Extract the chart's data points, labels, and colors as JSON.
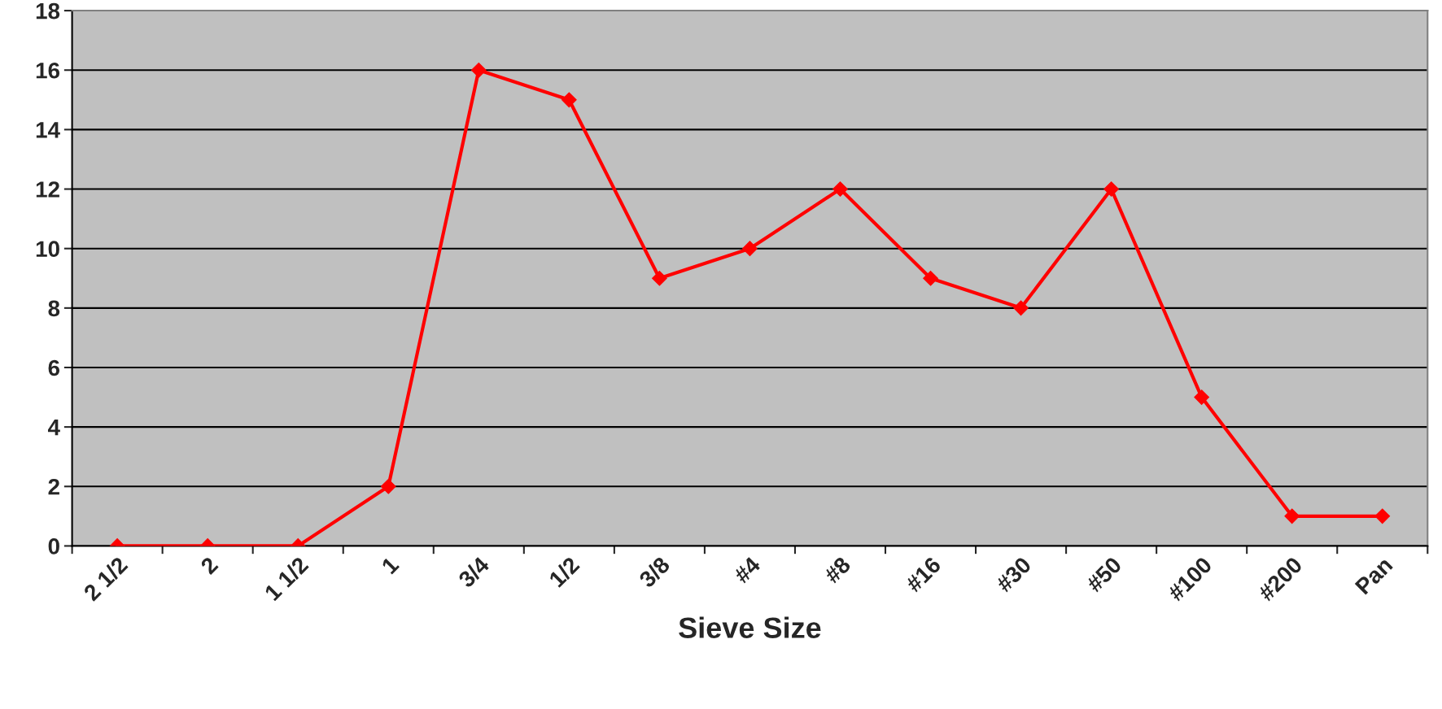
{
  "chart_data": {
    "type": "line",
    "xlabel": "Sieve Size",
    "categories": [
      "2 1/2",
      "2",
      "1 1/2",
      "1",
      "3/4",
      "1/2",
      "3/8",
      "#4",
      "#8",
      "#16",
      "#30",
      "#50",
      "#100",
      "#200",
      "Pan"
    ],
    "values": [
      0,
      0,
      0,
      2,
      16,
      15,
      9,
      10,
      12,
      9,
      8,
      12,
      5,
      1,
      1
    ],
    "color": "#ff0000",
    "marker": "diamond",
    "line_style": "solid",
    "ylim": [
      0,
      18
    ],
    "yticks": [
      0,
      2,
      4,
      6,
      8,
      10,
      12,
      14,
      16,
      18
    ],
    "grid": "y"
  }
}
